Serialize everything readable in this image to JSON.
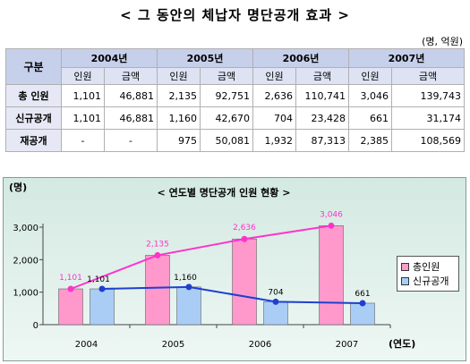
{
  "title": "< 그 동안의 체납자 명단공개 효과 >",
  "unit_note": "(명, 억원)",
  "table": {
    "corner": "구분",
    "years": [
      "2004년",
      "2005년",
      "2006년",
      "2007년"
    ],
    "sub": [
      "인원",
      "금액"
    ],
    "rows": [
      {
        "label": "총 인원",
        "cells": [
          "1,101",
          "46,881",
          "2,135",
          "92,751",
          "2,636",
          "110,741",
          "3,046",
          "139,743"
        ]
      },
      {
        "label": "신규공개",
        "cells": [
          "1,101",
          "46,881",
          "1,160",
          "42,670",
          "704",
          "23,428",
          "661",
          "31,174"
        ]
      },
      {
        "label": "재공개",
        "cells": [
          "-",
          "-",
          "975",
          "50,081",
          "1,932",
          "87,313",
          "2,385",
          "108,569"
        ]
      }
    ]
  },
  "chart_data": {
    "type": "bar",
    "title": "< 연도별 명단공개 인원 현황 >",
    "ylabel": "(명)",
    "xlabel": "(연도)",
    "categories": [
      "2004",
      "2005",
      "2006",
      "2007"
    ],
    "ylim": [
      0,
      3000
    ],
    "yticks": [
      "0",
      "1,000",
      "2,000",
      "3,000"
    ],
    "grid": false,
    "legend_position": "right",
    "series": [
      {
        "name": "총인원",
        "values": [
          1101,
          2135,
          2636,
          3046
        ],
        "labels": [
          "1,101",
          "2,135",
          "2,636",
          "3,046"
        ],
        "color": "#ff99cc",
        "line_color": "#ff33cc",
        "label_color": "#ff33cc"
      },
      {
        "name": "신규공개",
        "values": [
          1101,
          1160,
          704,
          661
        ],
        "labels": [
          "1,101",
          "1,160",
          "704",
          "661"
        ],
        "color": "#a9cdf5",
        "line_color": "#1f3fd0",
        "label_color": "#000000"
      }
    ]
  }
}
